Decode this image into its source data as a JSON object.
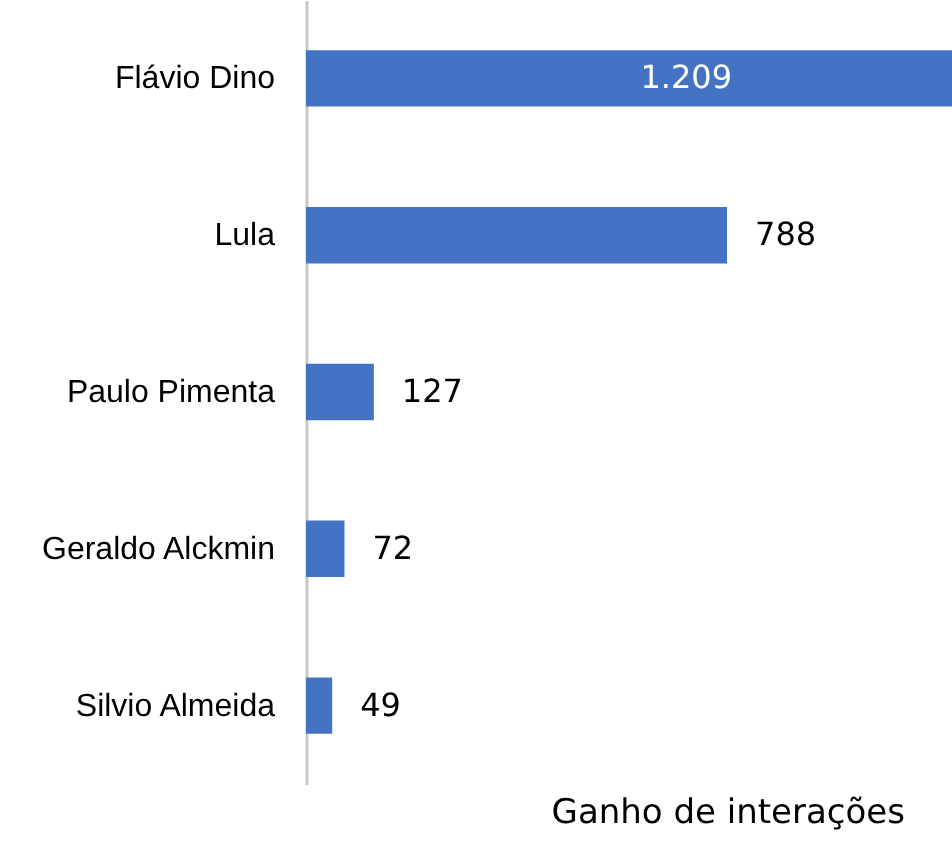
{
  "chart_data": {
    "type": "bar",
    "orientation": "horizontal",
    "xlabel": "Ganho de interações",
    "categories": [
      "Flávio Dino",
      "Lula",
      "Paulo Pimenta",
      "Geraldo Alckmin",
      "Silvio Almeida"
    ],
    "values": [
      1209,
      788,
      127,
      72,
      49
    ],
    "value_labels": [
      "1.209",
      "788",
      "127",
      "72",
      "49"
    ],
    "color": "#4472c4",
    "xlim": [
      0,
      1209
    ],
    "grid": false
  }
}
